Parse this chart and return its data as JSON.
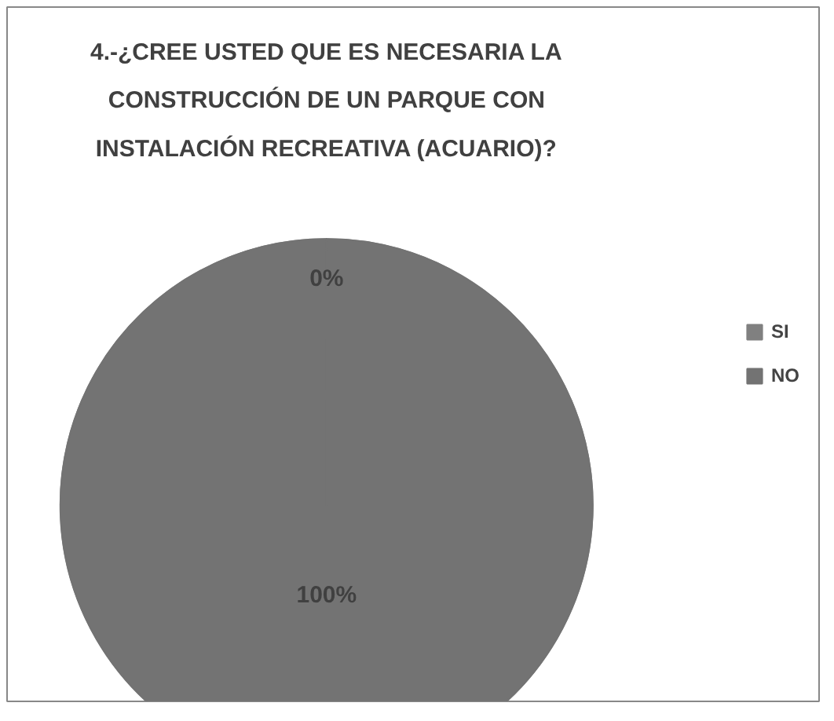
{
  "chart_data": {
    "type": "pie",
    "title": "4.-¿CREE USTED QUE ES NECESARIA LA CONSTRUCCIÓN DE UN PARQUE CON INSTALACIÓN RECREATIVA (ACUARIO)?",
    "categories": [
      "SI",
      "NO"
    ],
    "values": [
      0,
      100
    ],
    "colors": [
      "#808080",
      "#737373"
    ],
    "value_labels": [
      "0%",
      "100%"
    ],
    "legend": "right"
  }
}
